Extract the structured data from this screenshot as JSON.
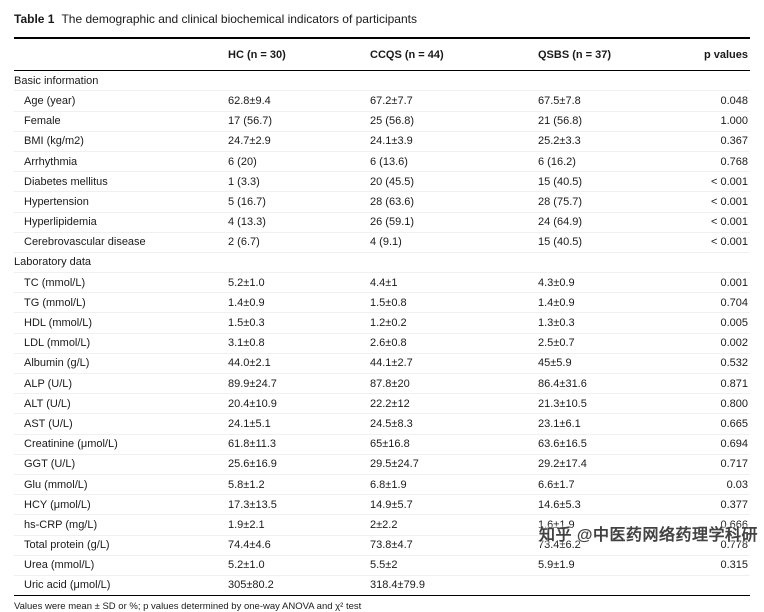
{
  "title": {
    "label": "Table 1",
    "caption": "The demographic and clinical biochemical indicators of participants"
  },
  "columns": [
    "",
    "HC (n = 30)",
    "CCQS (n = 44)",
    "QSBS (n = 37)",
    "p values"
  ],
  "sections": [
    {
      "name": "Basic information",
      "rows": [
        {
          "label": "Age (year)",
          "hc": "62.8±9.4",
          "ccqs": "67.2±7.7",
          "qsbs": "67.5±7.8",
          "p": "0.048"
        },
        {
          "label": "Female",
          "hc": "17 (56.7)",
          "ccqs": "25 (56.8)",
          "qsbs": "21 (56.8)",
          "p": "1.000"
        },
        {
          "label": "BMI (kg/m2)",
          "hc": "24.7±2.9",
          "ccqs": "24.1±3.9",
          "qsbs": "25.2±3.3",
          "p": "0.367"
        },
        {
          "label": "Arrhythmia",
          "hc": "6 (20)",
          "ccqs": "6 (13.6)",
          "qsbs": "6 (16.2)",
          "p": "0.768"
        },
        {
          "label": "Diabetes mellitus",
          "hc": "1 (3.3)",
          "ccqs": "20 (45.5)",
          "qsbs": "15 (40.5)",
          "p": "< 0.001"
        },
        {
          "label": "Hypertension",
          "hc": "5 (16.7)",
          "ccqs": "28 (63.6)",
          "qsbs": "28 (75.7)",
          "p": "< 0.001"
        },
        {
          "label": "Hyperlipidemia",
          "hc": "4 (13.3)",
          "ccqs": "26 (59.1)",
          "qsbs": "24 (64.9)",
          "p": "< 0.001"
        },
        {
          "label": "Cerebrovascular disease",
          "hc": "2 (6.7)",
          "ccqs": "4 (9.1)",
          "qsbs": "15 (40.5)",
          "p": "< 0.001"
        }
      ]
    },
    {
      "name": "Laboratory data",
      "rows": [
        {
          "label": "TC (mmol/L)",
          "hc": "5.2±1.0",
          "ccqs": "4.4±1",
          "qsbs": "4.3±0.9",
          "p": "0.001"
        },
        {
          "label": "TG (mmol/L)",
          "hc": "1.4±0.9",
          "ccqs": "1.5±0.8",
          "qsbs": "1.4±0.9",
          "p": "0.704"
        },
        {
          "label": "HDL (mmol/L)",
          "hc": "1.5±0.3",
          "ccqs": "1.2±0.2",
          "qsbs": "1.3±0.3",
          "p": "0.005"
        },
        {
          "label": "LDL (mmol/L)",
          "hc": "3.1±0.8",
          "ccqs": "2.6±0.8",
          "qsbs": "2.5±0.7",
          "p": "0.002"
        },
        {
          "label": "Albumin (g/L)",
          "hc": "44.0±2.1",
          "ccqs": "44.1±2.7",
          "qsbs": "45±5.9",
          "p": "0.532"
        },
        {
          "label": "ALP (U/L)",
          "hc": "89.9±24.7",
          "ccqs": "87.8±20",
          "qsbs": "86.4±31.6",
          "p": "0.871"
        },
        {
          "label": "ALT (U/L)",
          "hc": "20.4±10.9",
          "ccqs": "22.2±12",
          "qsbs": "21.3±10.5",
          "p": "0.800"
        },
        {
          "label": "AST (U/L)",
          "hc": "24.1±5.1",
          "ccqs": "24.5±8.3",
          "qsbs": "23.1±6.1",
          "p": "0.665"
        },
        {
          "label": "Creatinine (μmol/L)",
          "hc": "61.8±11.3",
          "ccqs": "65±16.8",
          "qsbs": "63.6±16.5",
          "p": "0.694"
        },
        {
          "label": "GGT (U/L)",
          "hc": "25.6±16.9",
          "ccqs": "29.5±24.7",
          "qsbs": "29.2±17.4",
          "p": "0.717"
        },
        {
          "label": "Glu (mmol/L)",
          "hc": "5.8±1.2",
          "ccqs": "6.8±1.9",
          "qsbs": "6.6±1.7",
          "p": "0.03"
        },
        {
          "label": "HCY (μmol/L)",
          "hc": "17.3±13.5",
          "ccqs": "14.9±5.7",
          "qsbs": "14.6±5.3",
          "p": "0.377"
        },
        {
          "label": "hs-CRP (mg/L)",
          "hc": "1.9±2.1",
          "ccqs": "2±2.2",
          "qsbs": "1.6±1.9",
          "p": "0.666"
        },
        {
          "label": "Total protein (g/L)",
          "hc": "74.4±4.6",
          "ccqs": "73.8±4.7",
          "qsbs": "73.4±6.2",
          "p": "0.778"
        },
        {
          "label": "Urea (mmol/L)",
          "hc": "5.2±1.0",
          "ccqs": "5.5±2",
          "qsbs": "5.9±1.9",
          "p": "0.315"
        },
        {
          "label": "Uric acid (μmol/L)",
          "hc": "305±80.2",
          "ccqs": "318.4±79.9",
          "qsbs": "",
          "p": ""
        }
      ]
    }
  ],
  "footnote": "Values were mean ± SD or %; p values determined by one-way ANOVA and χ² test",
  "watermark": "知乎 @中医药网络药理学科研"
}
